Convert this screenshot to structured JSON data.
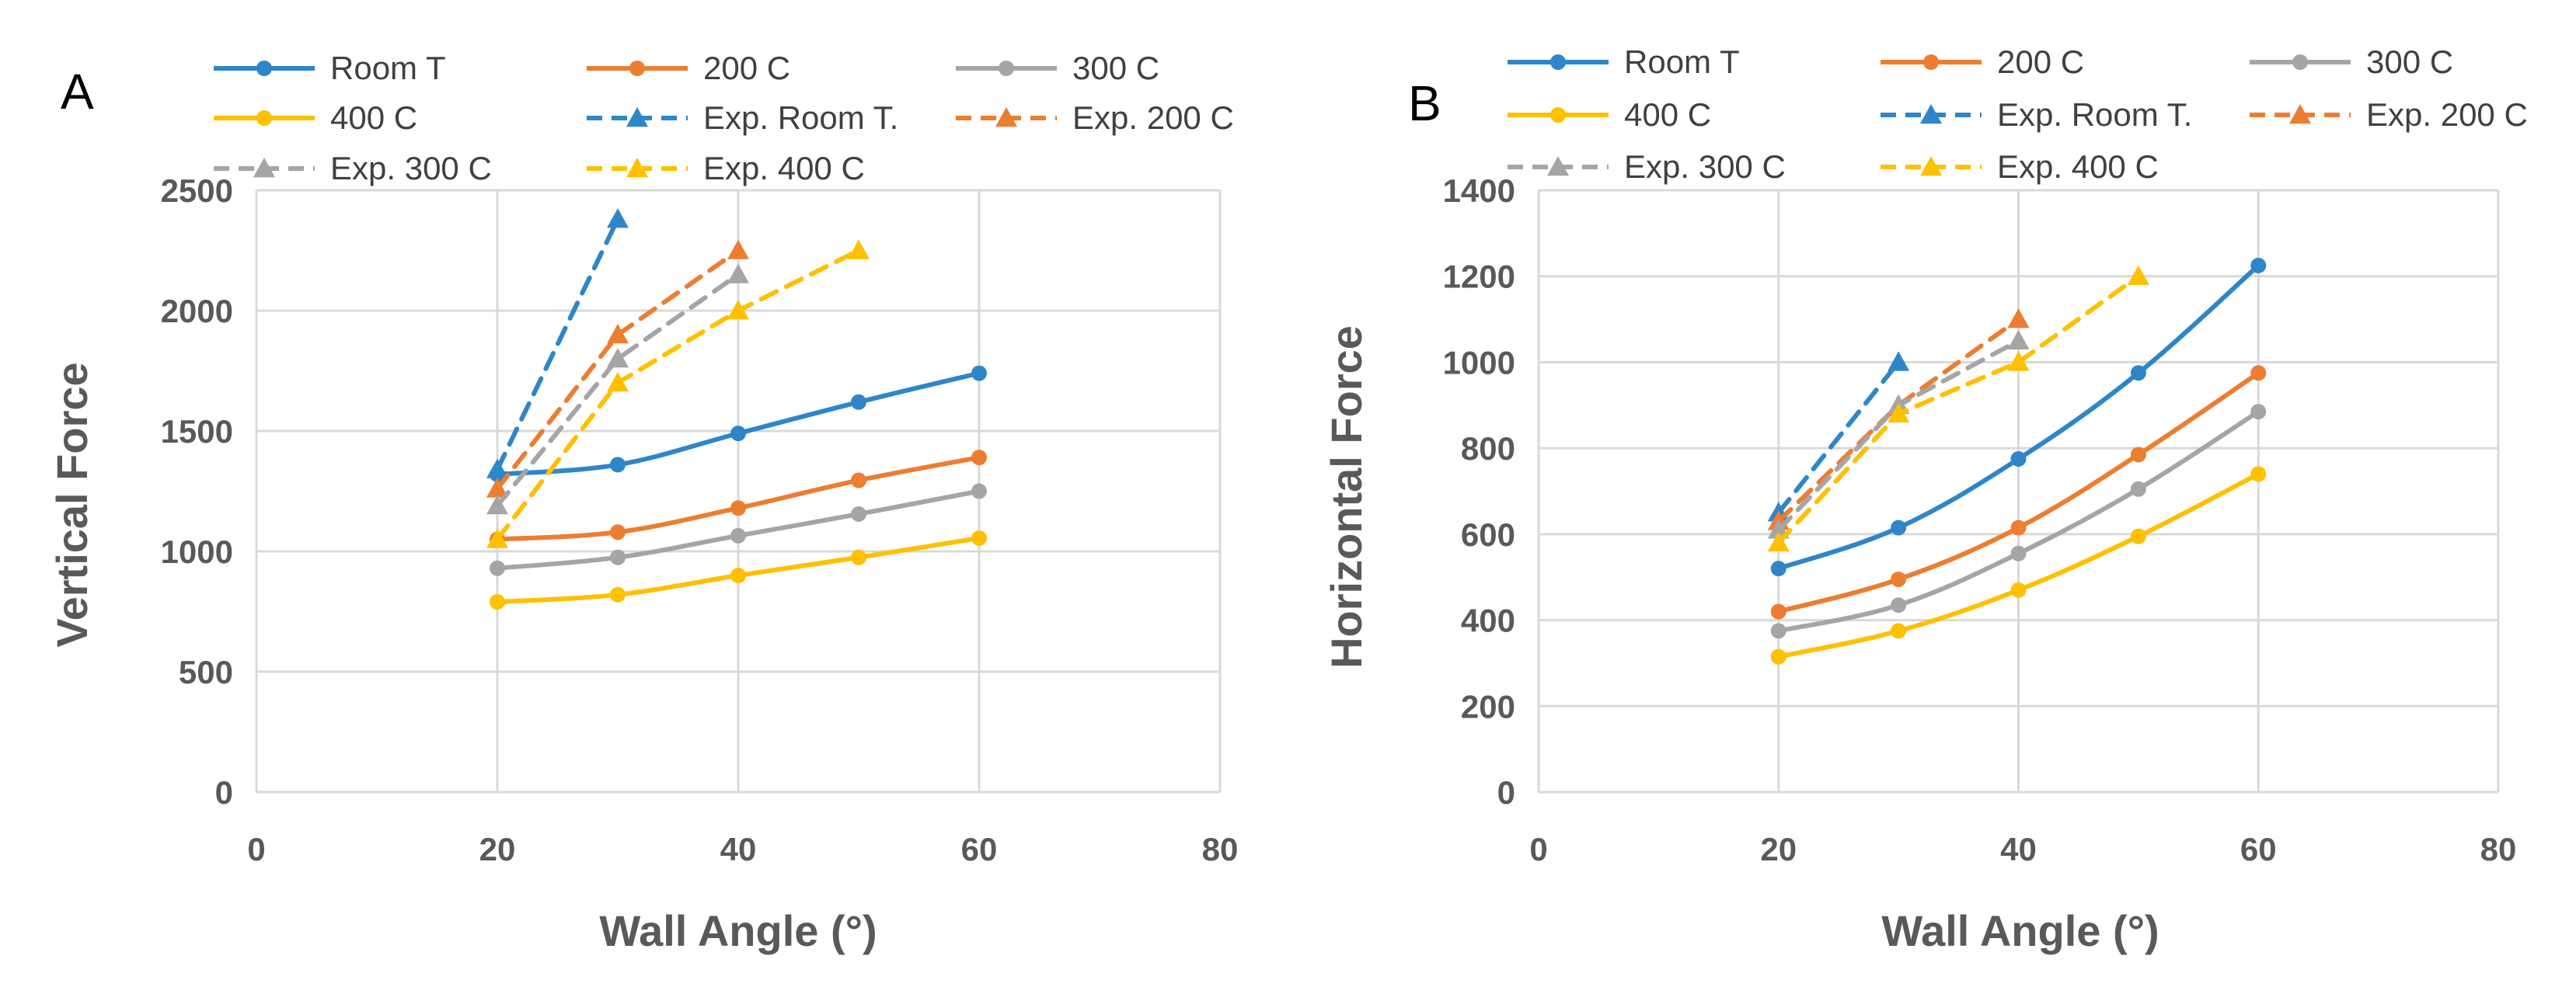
{
  "colors": {
    "room": "#2e86c9",
    "c200": "#ed7d31",
    "c300": "#a5a5a5",
    "c400": "#ffc000",
    "grid": "#d9d9d9",
    "text": "#595959"
  },
  "chart_data": [
    {
      "panel": "A",
      "type": "line",
      "xlabel": "Wall Angle (°)",
      "ylabel": "Vertical Force",
      "xlim": [
        0,
        80
      ],
      "ylim": [
        0,
        2500
      ],
      "xticks": [
        "0",
        "20",
        "40",
        "60",
        "80"
      ],
      "yticks": [
        "0",
        "500",
        "1000",
        "1500",
        "2000",
        "2500"
      ],
      "legend": "top",
      "series": [
        {
          "name": "Room T",
          "color": "room",
          "style": "solid",
          "marker": "circle",
          "x": [
            20,
            30,
            40,
            50,
            60
          ],
          "y": [
            1320,
            1360,
            1490,
            1620,
            1740
          ]
        },
        {
          "name": "200 C",
          "color": "c200",
          "style": "solid",
          "marker": "circle",
          "x": [
            20,
            30,
            40,
            50,
            60
          ],
          "y": [
            1050,
            1080,
            1180,
            1295,
            1390
          ]
        },
        {
          "name": "300 C",
          "color": "c300",
          "style": "solid",
          "marker": "circle",
          "x": [
            20,
            30,
            40,
            50,
            60
          ],
          "y": [
            930,
            975,
            1065,
            1155,
            1250
          ]
        },
        {
          "name": "400 C",
          "color": "c400",
          "style": "solid",
          "marker": "circle",
          "x": [
            20,
            30,
            40,
            50,
            60
          ],
          "y": [
            790,
            820,
            900,
            975,
            1055
          ]
        },
        {
          "name": "Exp. Room T.",
          "color": "room",
          "style": "dashed",
          "marker": "triangle",
          "x": [
            20,
            30
          ],
          "y": [
            1340,
            2380
          ]
        },
        {
          "name": "Exp. 200 C",
          "color": "c200",
          "style": "dashed",
          "marker": "triangle",
          "x": [
            20,
            30,
            40
          ],
          "y": [
            1260,
            1900,
            2250
          ]
        },
        {
          "name": "Exp. 300 C",
          "color": "c300",
          "style": "dashed",
          "marker": "triangle",
          "x": [
            20,
            30,
            40
          ],
          "y": [
            1190,
            1800,
            2150
          ]
        },
        {
          "name": "Exp. 400 C",
          "color": "c400",
          "style": "dashed",
          "marker": "triangle",
          "x": [
            20,
            30,
            40,
            50
          ],
          "y": [
            1050,
            1700,
            2000,
            2250
          ]
        }
      ]
    },
    {
      "panel": "B",
      "type": "line",
      "xlabel": "Wall Angle (°)",
      "ylabel": "Horizontal Force",
      "xlim": [
        0,
        80
      ],
      "ylim": [
        0,
        1400
      ],
      "xticks": [
        "0",
        "20",
        "40",
        "60",
        "80"
      ],
      "yticks": [
        "0",
        "200",
        "400",
        "600",
        "800",
        "1000",
        "1200",
        "1400"
      ],
      "legend": "top",
      "series": [
        {
          "name": "Room T",
          "color": "room",
          "style": "solid",
          "marker": "circle",
          "x": [
            20,
            30,
            40,
            50,
            60
          ],
          "y": [
            520,
            615,
            775,
            975,
            1225
          ]
        },
        {
          "name": "200 C",
          "color": "c200",
          "style": "solid",
          "marker": "circle",
          "x": [
            20,
            30,
            40,
            50,
            60
          ],
          "y": [
            420,
            495,
            615,
            785,
            975
          ]
        },
        {
          "name": "300 C",
          "color": "c300",
          "style": "solid",
          "marker": "circle",
          "x": [
            20,
            30,
            40,
            50,
            60
          ],
          "y": [
            375,
            435,
            555,
            705,
            885
          ]
        },
        {
          "name": "400 C",
          "color": "c400",
          "style": "solid",
          "marker": "circle",
          "x": [
            20,
            30,
            40,
            50,
            60
          ],
          "y": [
            315,
            375,
            470,
            595,
            740
          ]
        },
        {
          "name": "Exp. Room T.",
          "color": "room",
          "style": "dashed",
          "marker": "triangle",
          "x": [
            20,
            30
          ],
          "y": [
            650,
            1000
          ]
        },
        {
          "name": "Exp. 200 C",
          "color": "c200",
          "style": "dashed",
          "marker": "triangle",
          "x": [
            20,
            30,
            40
          ],
          "y": [
            630,
            900,
            1100
          ]
        },
        {
          "name": "Exp. 300 C",
          "color": "c300",
          "style": "dashed",
          "marker": "triangle",
          "x": [
            20,
            30,
            40
          ],
          "y": [
            610,
            900,
            1050
          ]
        },
        {
          "name": "Exp. 400 C",
          "color": "c400",
          "style": "dashed",
          "marker": "triangle",
          "x": [
            20,
            30,
            40,
            50
          ],
          "y": [
            580,
            880,
            1000,
            1200
          ]
        }
      ]
    }
  ]
}
